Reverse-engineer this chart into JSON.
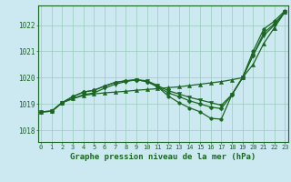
{
  "background_color": "#cce8f0",
  "grid_color": "#99ccbb",
  "line_color": "#1a6622",
  "marker_color": "#1a6622",
  "xlabel": "Graphe pression niveau de la mer (hPa)",
  "xlabel_fontsize": 6.5,
  "xtick_labels": [
    "0",
    "1",
    "2",
    "3",
    "4",
    "5",
    "6",
    "7",
    "8",
    "9",
    "10",
    "11",
    "12",
    "13",
    "14",
    "15",
    "16",
    "17",
    "18",
    "19",
    "20",
    "21",
    "22",
    "23"
  ],
  "ytick_labels": [
    1018,
    1019,
    1020,
    1021,
    1022
  ],
  "ylim": [
    1017.55,
    1022.75
  ],
  "xlim": [
    -0.3,
    23.3
  ],
  "series": [
    [
      1018.7,
      1018.72,
      1019.05,
      1019.2,
      1019.32,
      1019.38,
      1019.42,
      1019.45,
      1019.48,
      1019.52,
      1019.55,
      1019.58,
      1019.62,
      1019.65,
      1019.7,
      1019.75,
      1019.8,
      1019.85,
      1019.92,
      1020.0,
      1020.5,
      1021.3,
      1021.9,
      1022.5
    ],
    [
      1018.7,
      1018.72,
      1019.05,
      1019.2,
      1019.35,
      1019.42,
      1019.6,
      1019.75,
      1019.85,
      1019.92,
      1019.88,
      1019.7,
      1019.5,
      1019.38,
      1019.25,
      1019.15,
      1019.05,
      1018.95,
      1019.35,
      1020.0,
      1020.85,
      1021.6,
      1022.0,
      1022.5
    ],
    [
      1018.7,
      1018.72,
      1019.05,
      1019.28,
      1019.45,
      1019.52,
      1019.68,
      1019.82,
      1019.88,
      1019.92,
      1019.85,
      1019.65,
      1019.42,
      1019.28,
      1019.12,
      1019.0,
      1018.88,
      1018.82,
      1019.35,
      1020.0,
      1020.85,
      1021.7,
      1022.05,
      1022.5
    ],
    [
      1018.7,
      1018.72,
      1019.05,
      1019.28,
      1019.45,
      1019.52,
      1019.68,
      1019.82,
      1019.88,
      1019.92,
      1019.85,
      1019.65,
      1019.3,
      1019.05,
      1018.85,
      1018.7,
      1018.45,
      1018.42,
      1019.35,
      1020.0,
      1021.0,
      1021.85,
      1022.15,
      1022.55
    ]
  ],
  "marker_styles": [
    "^",
    "v",
    "D",
    "o"
  ],
  "marker_sizes": [
    3,
    3,
    2.5,
    2.5
  ],
  "linewidths": [
    0.9,
    0.9,
    0.9,
    0.9
  ]
}
